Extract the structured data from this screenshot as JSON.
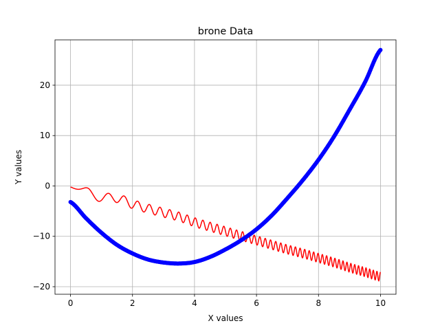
{
  "chart_data": {
    "type": "line",
    "title": "brone Data",
    "xlabel": "X values",
    "ylabel": "Y values",
    "xlim": [
      -0.5,
      10.5
    ],
    "ylim": [
      -21.5,
      29.0
    ],
    "xticks": [
      0,
      2,
      4,
      6,
      8,
      10
    ],
    "yticks": [
      -20,
      -10,
      0,
      10,
      20
    ],
    "xtick_labels": [
      "0",
      "2",
      "4",
      "6",
      "8",
      "10"
    ],
    "ytick_labels": [
      "−20",
      "−10",
      "0",
      "10",
      "20"
    ],
    "grid": true,
    "series": [
      {
        "style": "dense scatter markers",
        "color": "#0000ff",
        "x": [
          0,
          0.5,
          1,
          1.5,
          2,
          2.5,
          3,
          3.5,
          4,
          4.5,
          5,
          5.5,
          6,
          6.5,
          7,
          7.5,
          8,
          8.5,
          9,
          9.5,
          10
        ],
        "y": [
          -3.2,
          -6.4,
          -9.3,
          -11.7,
          -13.4,
          -14.6,
          -15.2,
          -15.4,
          -15.1,
          -14.1,
          -12.6,
          -10.8,
          -8.6,
          -5.8,
          -2.4,
          1.2,
          5.2,
          9.8,
          15.1,
          20.6,
          27.0
        ]
      },
      {
        "style": "oscillating line",
        "color": "#ff0000",
        "x": [
          0,
          0.5,
          1,
          1.5,
          2,
          2.5,
          3,
          3.5,
          4,
          4.5,
          5,
          5.5,
          6,
          6.5,
          7,
          7.5,
          8,
          8.5,
          9,
          9.5,
          10
        ],
        "y": [
          -0.2,
          -1.1,
          -2.3,
          -2.4,
          -3.6,
          -4.5,
          -5.3,
          -6.1,
          -7.2,
          -8.1,
          -9.0,
          -9.9,
          -10.8,
          -11.7,
          -12.6,
          -13.4,
          -14.3,
          -15.2,
          -16.2,
          -17.1,
          -18.0
        ],
        "oscillation_amplitude": 0.9
      }
    ]
  }
}
